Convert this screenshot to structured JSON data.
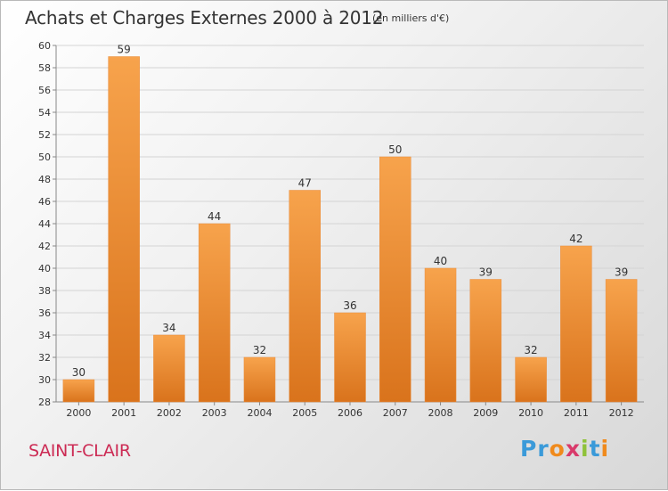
{
  "title": "Achats et Charges Externes 2000 à 2012",
  "subtitle": "(en milliers d'€)",
  "location": "SAINT-CLAIR",
  "brand": {
    "text": "Proxiti",
    "colors": [
      "#3a9ad9",
      "#3a9ad9",
      "#f08a1c",
      "#d93a6b",
      "#8fc23a",
      "#3a9ad9",
      "#f08a1c"
    ]
  },
  "chart_data": {
    "type": "bar",
    "categories": [
      "2000",
      "2001",
      "2002",
      "2003",
      "2004",
      "2005",
      "2006",
      "2007",
      "2008",
      "2009",
      "2010",
      "2011",
      "2012"
    ],
    "values": [
      30,
      59,
      34,
      44,
      32,
      47,
      36,
      50,
      40,
      39,
      32,
      42,
      39
    ],
    "ylim": [
      28,
      60
    ],
    "yticks": [
      28,
      30,
      32,
      34,
      36,
      38,
      40,
      42,
      44,
      46,
      48,
      50,
      52,
      54,
      56,
      58,
      60
    ],
    "grid": true,
    "bar_color": "#ee8a2c"
  }
}
